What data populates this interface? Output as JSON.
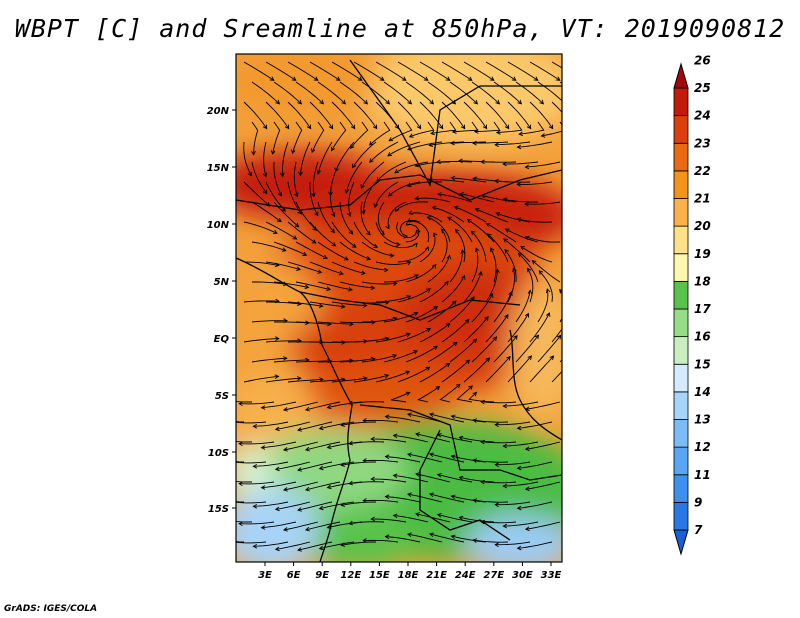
{
  "title": "WBPT [C] and Sreamline at 850hPa, VT: 2019090812",
  "credit": "GrADS: IGES/COLA",
  "map": {
    "lat_ticks": [
      "20N",
      "15N",
      "10N",
      "5N",
      "EQ",
      "5S",
      "10S",
      "15S"
    ],
    "lon_ticks": [
      "3E",
      "6E",
      "9E",
      "12E",
      "15E",
      "18E",
      "21E",
      "24E",
      "27E",
      "30E",
      "33E"
    ]
  },
  "colorbar": {
    "levels": [
      "7",
      "9",
      "11",
      "12",
      "13",
      "14",
      "15",
      "16",
      "17",
      "18",
      "19",
      "20",
      "21",
      "22",
      "23",
      "24",
      "25",
      "26"
    ],
    "colors": [
      "#1a5fd6",
      "#2a78e6",
      "#3f8ff0",
      "#5aa6f4",
      "#7bbcf7",
      "#a6d4fa",
      "#d3ecfb",
      "#c7efbf",
      "#96de86",
      "#58c24c",
      "#fdf7b2",
      "#fde08a",
      "#f9b24a",
      "#f39319",
      "#ea6a12",
      "#dc3f0e",
      "#c21b0c",
      "#a0060a"
    ]
  }
}
